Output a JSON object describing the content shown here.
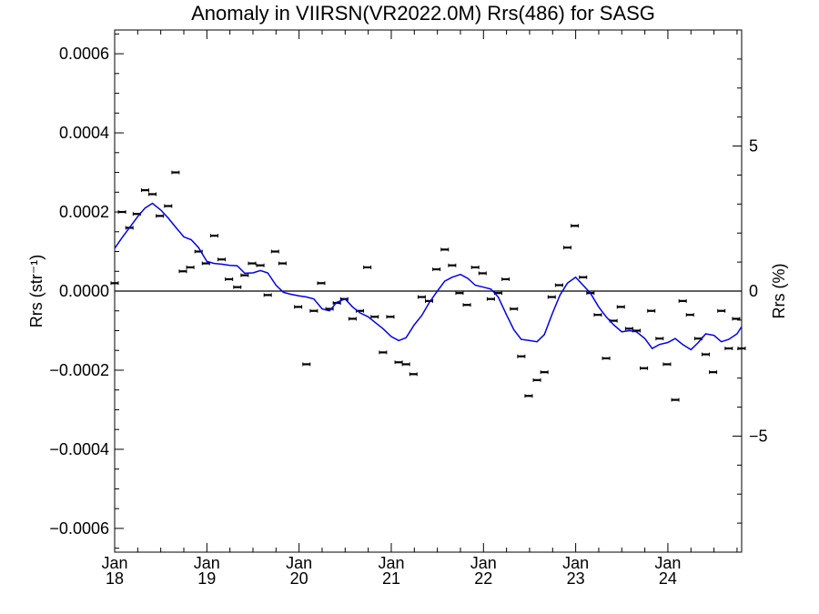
{
  "chart_data": {
    "type": "line",
    "title": "Anomaly in VIIRSN(VR2022.0M) Rrs(486) for SASG",
    "ylabel_left": "Rrs (str⁻¹)",
    "ylabel_right": "Rrs (%)",
    "xlabel": "",
    "ylim_left": [
      -0.00066,
      0.00066
    ],
    "ylim_right": [
      -9.0,
      9.0
    ],
    "xlim": [
      2018.0,
      2024.8
    ],
    "left_ticks": [
      {
        "value": 0.0006,
        "label": "0.0006"
      },
      {
        "value": 0.0004,
        "label": "0.0004"
      },
      {
        "value": 0.0002,
        "label": "0.0002"
      },
      {
        "value": 0.0,
        "label": "0.0000"
      },
      {
        "value": -0.0002,
        "label": "−0.0002"
      },
      {
        "value": -0.0004,
        "label": "−0.0004"
      },
      {
        "value": -0.0006,
        "label": "−0.0006"
      }
    ],
    "right_ticks": [
      {
        "value": 5,
        "label": "5"
      },
      {
        "value": 0,
        "label": "0"
      },
      {
        "value": -5,
        "label": "−5"
      }
    ],
    "x_ticks": [
      {
        "value": 2018,
        "month": "Jan",
        "year": "18"
      },
      {
        "value": 2019,
        "month": "Jan",
        "year": "19"
      },
      {
        "value": 2020,
        "month": "Jan",
        "year": "20"
      },
      {
        "value": 2021,
        "month": "Jan",
        "year": "21"
      },
      {
        "value": 2022,
        "month": "Jan",
        "year": "22"
      },
      {
        "value": 2023,
        "month": "Jan",
        "year": "23"
      },
      {
        "value": 2024,
        "month": "Jan",
        "year": "24"
      }
    ],
    "reference_line": 0.0,
    "series": [
      {
        "type": "scatter_errorbar",
        "color": "#000000",
        "points": [
          [
            2018.0,
            2e-05
          ],
          [
            2018.08,
            0.0002
          ],
          [
            2018.16,
            0.00016
          ],
          [
            2018.24,
            0.000195
          ],
          [
            2018.33,
            0.000255
          ],
          [
            2018.41,
            0.000245
          ],
          [
            2018.49,
            0.00019
          ],
          [
            2018.58,
            0.000215
          ],
          [
            2018.66,
            0.0003
          ],
          [
            2018.74,
            5e-05
          ],
          [
            2018.82,
            6e-05
          ],
          [
            2018.91,
            0.0001
          ],
          [
            2018.99,
            7e-05
          ],
          [
            2019.08,
            0.00014
          ],
          [
            2019.16,
            8e-05
          ],
          [
            2019.24,
            3e-05
          ],
          [
            2019.33,
            1e-05
          ],
          [
            2019.41,
            4e-05
          ],
          [
            2019.49,
            7e-05
          ],
          [
            2019.58,
            6.5e-05
          ],
          [
            2019.66,
            -1e-05
          ],
          [
            2019.74,
            0.0001
          ],
          [
            2019.82,
            7e-05
          ],
          [
            2019.99,
            -4e-05
          ],
          [
            2020.08,
            -0.000185
          ],
          [
            2020.16,
            -5e-05
          ],
          [
            2020.24,
            2e-05
          ],
          [
            2020.33,
            -4.5e-05
          ],
          [
            2020.41,
            -3e-05
          ],
          [
            2020.49,
            -2e-05
          ],
          [
            2020.58,
            -7e-05
          ],
          [
            2020.66,
            -5e-05
          ],
          [
            2020.74,
            6e-05
          ],
          [
            2020.82,
            -6.5e-05
          ],
          [
            2020.91,
            -0.000155
          ],
          [
            2020.99,
            -6.5e-05
          ],
          [
            2021.08,
            -0.00018
          ],
          [
            2021.16,
            -0.000185
          ],
          [
            2021.24,
            -0.00021
          ],
          [
            2021.33,
            -1.5e-05
          ],
          [
            2021.41,
            -2.5e-05
          ],
          [
            2021.49,
            5.5e-05
          ],
          [
            2021.58,
            0.000105
          ],
          [
            2021.66,
            6.5e-05
          ],
          [
            2021.74,
            -5e-06
          ],
          [
            2021.82,
            -3.5e-05
          ],
          [
            2021.91,
            6e-05
          ],
          [
            2021.99,
            4.5e-05
          ],
          [
            2022.08,
            -2e-05
          ],
          [
            2022.16,
            -5e-06
          ],
          [
            2022.24,
            3e-05
          ],
          [
            2022.33,
            -4.5e-05
          ],
          [
            2022.41,
            -0.000165
          ],
          [
            2022.49,
            -0.000265
          ],
          [
            2022.58,
            -0.000225
          ],
          [
            2022.66,
            -0.000205
          ],
          [
            2022.74,
            -1.5e-05
          ],
          [
            2022.82,
            1.5e-05
          ],
          [
            2022.91,
            0.00011
          ],
          [
            2022.99,
            0.000165
          ],
          [
            2023.08,
            3.5e-05
          ],
          [
            2023.16,
            -5e-06
          ],
          [
            2023.24,
            -6e-05
          ],
          [
            2023.33,
            -0.00017
          ],
          [
            2023.41,
            -7.5e-05
          ],
          [
            2023.49,
            -4e-05
          ],
          [
            2023.58,
            -9.5e-05
          ],
          [
            2023.66,
            -0.0001
          ],
          [
            2023.74,
            -0.000195
          ],
          [
            2023.82,
            -5e-05
          ],
          [
            2023.91,
            -0.00012
          ],
          [
            2023.99,
            -0.000185
          ],
          [
            2024.08,
            -0.000275
          ],
          [
            2024.16,
            -2.5e-05
          ],
          [
            2024.24,
            -6e-05
          ],
          [
            2024.33,
            -0.00012
          ],
          [
            2024.41,
            -0.00016
          ],
          [
            2024.49,
            -0.000205
          ],
          [
            2024.58,
            -5e-05
          ],
          [
            2024.66,
            -0.000145
          ],
          [
            2024.74,
            -7e-05
          ],
          [
            2024.8,
            -0.000145
          ]
        ]
      },
      {
        "type": "line",
        "color": "#0000ee",
        "points": [
          [
            2018.0,
            0.000108
          ],
          [
            2018.08,
            0.000135
          ],
          [
            2018.16,
            0.00016
          ],
          [
            2018.25,
            0.000188
          ],
          [
            2018.33,
            0.00021
          ],
          [
            2018.41,
            0.000222
          ],
          [
            2018.5,
            0.000205
          ],
          [
            2018.58,
            0.000185
          ],
          [
            2018.66,
            0.000162
          ],
          [
            2018.75,
            0.000137
          ],
          [
            2018.83,
            0.00013
          ],
          [
            2018.91,
            0.00011
          ],
          [
            2019.0,
            7.5e-05
          ],
          [
            2019.08,
            7e-05
          ],
          [
            2019.16,
            6.8e-05
          ],
          [
            2019.25,
            6.5e-05
          ],
          [
            2019.33,
            6.4e-05
          ],
          [
            2019.41,
            4.5e-05
          ],
          [
            2019.5,
            4.6e-05
          ],
          [
            2019.58,
            5.2e-05
          ],
          [
            2019.66,
            4.6e-05
          ],
          [
            2019.75,
            1.5e-05
          ],
          [
            2019.83,
            -3e-06
          ],
          [
            2019.91,
            -8e-06
          ],
          [
            2020.0,
            -1.2e-05
          ],
          [
            2020.08,
            -1.5e-05
          ],
          [
            2020.16,
            -2e-05
          ],
          [
            2020.25,
            -4.5e-05
          ],
          [
            2020.33,
            -5e-05
          ],
          [
            2020.41,
            -2.8e-05
          ],
          [
            2020.5,
            -2e-05
          ],
          [
            2020.58,
            -4e-05
          ],
          [
            2020.66,
            -5.5e-05
          ],
          [
            2020.75,
            -6.5e-05
          ],
          [
            2020.83,
            -8e-05
          ],
          [
            2020.91,
            -9.5e-05
          ],
          [
            2021.0,
            -0.000115
          ],
          [
            2021.08,
            -0.000125
          ],
          [
            2021.16,
            -0.000118
          ],
          [
            2021.25,
            -8.5e-05
          ],
          [
            2021.33,
            -6.2e-05
          ],
          [
            2021.41,
            -3e-05
          ],
          [
            2021.5,
            0.0
          ],
          [
            2021.58,
            2.5e-05
          ],
          [
            2021.66,
            3.5e-05
          ],
          [
            2021.75,
            4.2e-05
          ],
          [
            2021.83,
            3.2e-05
          ],
          [
            2021.91,
            1.5e-05
          ],
          [
            2022.0,
            1e-05
          ],
          [
            2022.08,
            5e-06
          ],
          [
            2022.16,
            -1.5e-05
          ],
          [
            2022.25,
            -6e-05
          ],
          [
            2022.33,
            -9.8e-05
          ],
          [
            2022.41,
            -0.000122
          ],
          [
            2022.5,
            -0.000125
          ],
          [
            2022.58,
            -0.000128
          ],
          [
            2022.66,
            -0.00011
          ],
          [
            2022.75,
            -5.5e-05
          ],
          [
            2022.83,
            -1e-05
          ],
          [
            2022.91,
            2e-05
          ],
          [
            2023.0,
            3.5e-05
          ],
          [
            2023.08,
            1.5e-05
          ],
          [
            2023.16,
            -5e-06
          ],
          [
            2023.25,
            -4e-05
          ],
          [
            2023.33,
            -6.5e-05
          ],
          [
            2023.41,
            -8.5e-05
          ],
          [
            2023.5,
            -0.000103
          ],
          [
            2023.58,
            -0.0001
          ],
          [
            2023.66,
            -0.000103
          ],
          [
            2023.75,
            -0.00012
          ],
          [
            2023.83,
            -0.000145
          ],
          [
            2023.91,
            -0.000135
          ],
          [
            2024.0,
            -0.00013
          ],
          [
            2024.08,
            -0.00012
          ],
          [
            2024.16,
            -0.000135
          ],
          [
            2024.25,
            -0.000148
          ],
          [
            2024.33,
            -0.00013
          ],
          [
            2024.41,
            -0.000108
          ],
          [
            2024.5,
            -0.000112
          ],
          [
            2024.58,
            -0.000128
          ],
          [
            2024.66,
            -0.000122
          ],
          [
            2024.75,
            -0.000108
          ],
          [
            2024.8,
            -9e-05
          ]
        ]
      }
    ]
  }
}
